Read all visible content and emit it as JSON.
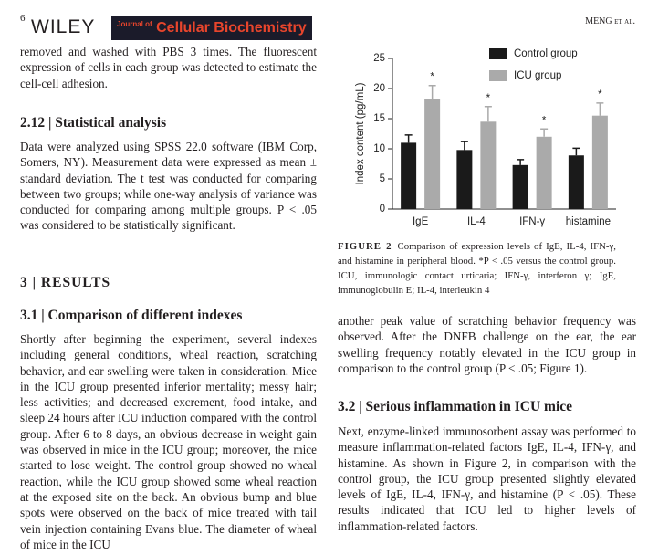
{
  "header": {
    "page_number": "6",
    "publisher": "WILEY",
    "journal_prefix": "Journal of",
    "journal_name": "Cellular Biochemistry",
    "running_head": "MENG et al."
  },
  "left_column": [
    "removed and washed with PBS 3 times. The fluorescent expression of cells in each group was detected to estimate the cell-cell adhesion.",
    "2.12 | Statistical analysis",
    "Data were analyzed using SPSS 22.0 software (IBM Corp, Somers, NY). Measurement data were expressed as mean ± standard deviation. The t test was conducted for comparing between two groups; while one-way analysis of variance was conducted for comparing among multiple groups. P < .05 was considered to be statistically significant.",
    "3 | RESULTS",
    "3.1 | Comparison of different indexes",
    "Shortly after beginning the experiment, several indexes including general conditions, wheal reaction, scratching behavior, and ear swelling were taken in consideration. Mice in the ICU group presented inferior mentality; messy hair; less activities; and decreased excrement, food intake, and sleep 24 hours after ICU induction compared with the control group. After 6 to 8 days, an obvious decrease in weight gain was observed in mice in the ICU group; moreover, the mice started to lose weight. The control group showed no wheal reaction, while the ICU group showed some wheal reaction at the exposed site on the back. An obvious bump and blue spots were observed on the back of mice treated with tail vein injection containing Evans blue. The diameter of wheal of mice in the ICU"
  ],
  "figure_caption": {
    "label": "FIGURE 2",
    "text": "Comparison of expression levels of IgE, IL-4, IFN-γ, and histamine in peripheral blood. *P < .05 versus the control group. ICU, immunologic contact urticaria; IFN-γ, interferon γ; IgE, immunoglobulin E; IL-4, interleukin 4"
  },
  "right_column": [
    "another peak value of scratching behavior frequency was observed. After the DNFB challenge on the ear, the ear swelling frequency notably elevated in the ICU group in comparison to the control group (P < .05; Figure 1).",
    "3.2 | Serious inflammation in ICU mice",
    "Next, enzyme-linked immunosorbent assay was performed to measure inflammation-related factors IgE, IL-4, IFN-γ, and histamine. As shown in Figure 2, in comparison with the control group, the ICU group presented slightly elevated levels of IgE, IL-4, IFN-γ, and histamine (P < .05). These results indicated that ICU led to higher levels of inflammation-related factors."
  ],
  "chart_data": {
    "type": "bar",
    "y_label": "Index content (pg/mL)",
    "categories": [
      "IgE",
      "IL-4",
      "IFN-γ",
      "histamine"
    ],
    "series": [
      {
        "name": "Control group",
        "color": "#1a1a1a",
        "values": [
          11,
          9.8,
          7.3,
          8.9
        ],
        "errors": [
          1.3,
          1.4,
          0.9,
          1.2
        ]
      },
      {
        "name": "ICU group",
        "color": "#aaaaaa",
        "values": [
          18.3,
          14.5,
          12,
          15.5
        ],
        "errors": [
          2.2,
          2.5,
          1.3,
          2.1
        ],
        "annotations": [
          "*",
          "*",
          "*",
          "*"
        ]
      }
    ],
    "ylim": [
      0,
      25
    ],
    "yticks": [
      0,
      5,
      10,
      15,
      20,
      25
    ],
    "legend": "top-right"
  }
}
